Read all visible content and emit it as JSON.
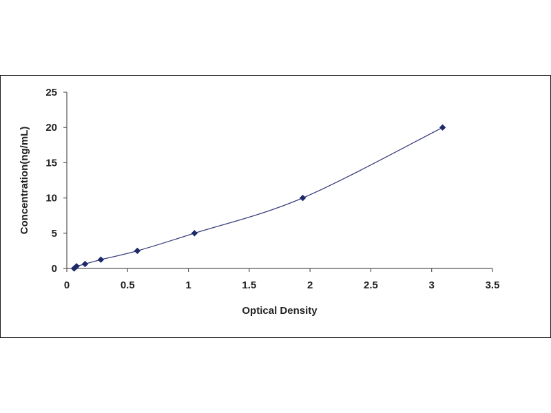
{
  "chart_data": {
    "type": "scatter",
    "xlabel": "Optical Density",
    "ylabel": "Concentration(ng/mL)",
    "xlim": [
      0,
      3.5
    ],
    "ylim": [
      0,
      25
    ],
    "x_ticks": [
      0,
      0.5,
      1,
      1.5,
      2,
      2.5,
      3,
      3.5
    ],
    "x_tick_labels": [
      "0",
      "0.5",
      "1",
      "1.5",
      "2",
      "2.5",
      "3",
      "3.5"
    ],
    "y_ticks": [
      0,
      5,
      10,
      15,
      20,
      25
    ],
    "y_tick_labels": [
      "0",
      "5",
      "10",
      "15",
      "20",
      "25"
    ],
    "grid": false,
    "legend": "none",
    "series": [
      {
        "x": [
          0.06,
          0.08,
          0.15,
          0.28,
          0.58,
          1.05,
          1.94,
          3.09
        ],
        "y": [
          0,
          0.31,
          0.63,
          1.25,
          2.5,
          5,
          10,
          20
        ],
        "marker": "diamond",
        "trendline": "smooth",
        "color": "#1f2a6b"
      }
    ]
  }
}
